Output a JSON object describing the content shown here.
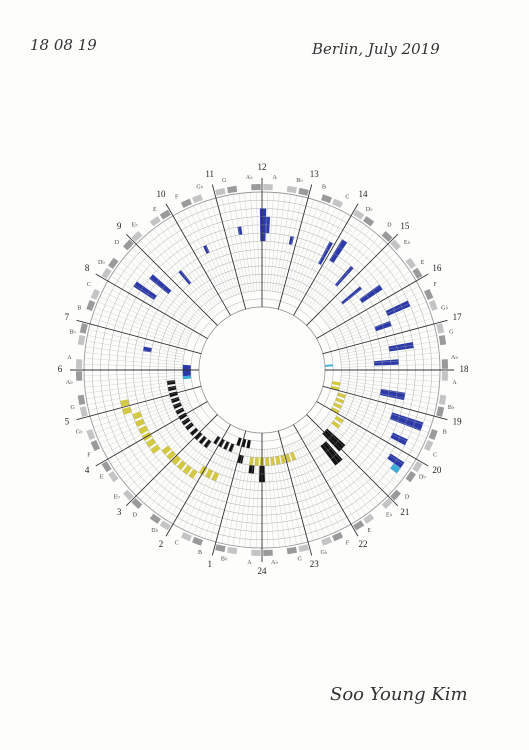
{
  "header": {
    "date": "18 08 19",
    "place": "Berlin, July 2019"
  },
  "dial": {
    "hours": [
      "1",
      "2",
      "3",
      "4",
      "5",
      "6",
      "7",
      "8",
      "9",
      "10",
      "11",
      "12",
      "13",
      "14",
      "15",
      "16",
      "17",
      "18",
      "19",
      "20",
      "21",
      "22",
      "23",
      "24"
    ],
    "notes": [
      "A",
      "B♭",
      "B",
      "C",
      "D♭",
      "D",
      "E♭",
      "E",
      "F",
      "G♭",
      "G",
      "A♭",
      "A",
      "B♭",
      "B",
      "C",
      "D♭",
      "D",
      "E♭",
      "E",
      "F",
      "G♭",
      "G",
      "A♭",
      "A",
      "B♭",
      "B",
      "C",
      "D♭",
      "D",
      "E♭",
      "E",
      "F",
      "G♭",
      "G",
      "A♭",
      "A",
      "B♭",
      "B",
      "C",
      "D♭",
      "D",
      "E♭",
      "E",
      "F",
      "G♭",
      "G",
      "A♭"
    ]
  },
  "signature": "Soo Young Kim"
}
